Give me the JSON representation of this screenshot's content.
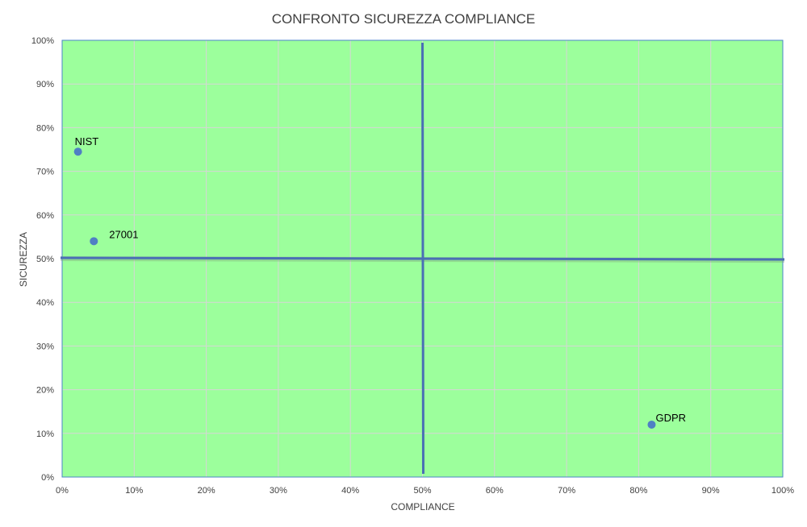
{
  "chart_data": {
    "type": "scatter",
    "title": "CONFRONTO SICUREZZA COMPLIANCE",
    "xlabel": "COMPLIANCE",
    "ylabel": "SICUREZZA",
    "xlim": [
      0,
      1
    ],
    "ylim": [
      0,
      1
    ],
    "x_ticks": [
      "0%",
      "10%",
      "20%",
      "30%",
      "40%",
      "50%",
      "60%",
      "70%",
      "80%",
      "90%",
      "100%"
    ],
    "y_ticks": [
      "0%",
      "10%",
      "20%",
      "30%",
      "40%",
      "50%",
      "60%",
      "70%",
      "80%",
      "90%",
      "100%"
    ],
    "grid": true,
    "quadrant_lines": {
      "x": 0.5,
      "y": 0.5
    },
    "points": [
      {
        "label": "NIST",
        "x": 0.022,
        "y": 0.745
      },
      {
        "label": "27001",
        "x": 0.044,
        "y": 0.54
      },
      {
        "label": "GDPR",
        "x": 0.818,
        "y": 0.12
      }
    ],
    "colors": {
      "plot_background": "#9cff9c",
      "marker": "#4f7fc4",
      "quadrant_line": "#4a6fb5",
      "grid": "#d6d6d6",
      "plot_border": "#4a86c8"
    }
  }
}
